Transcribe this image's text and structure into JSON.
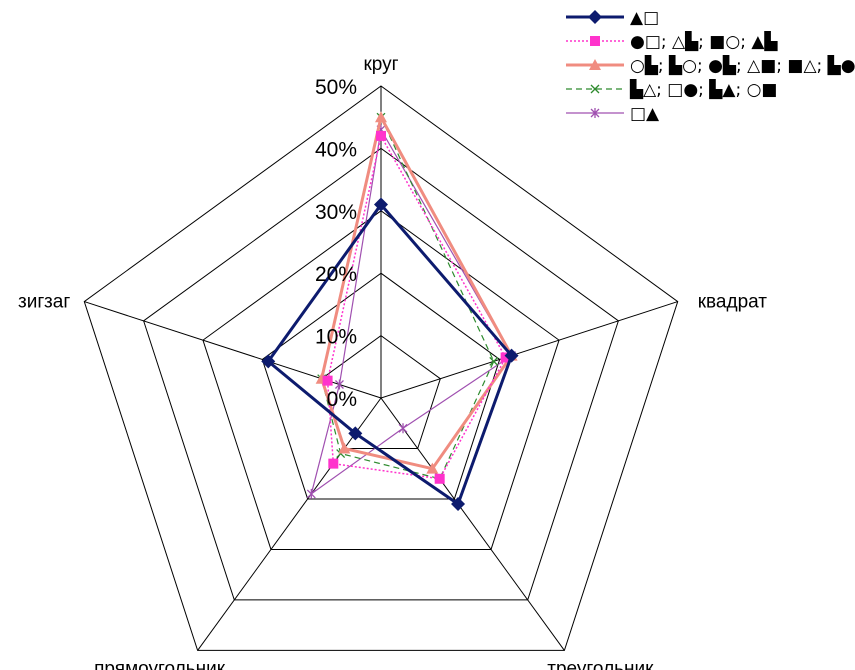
{
  "chart_data": {
    "type": "radar",
    "title": "",
    "axes": [
      "круг",
      "квадрат",
      "треугольник",
      "прямоугольник",
      "зигзаг"
    ],
    "range": [
      0,
      0.5
    ],
    "ticks": [
      0,
      0.1,
      0.2,
      0.3,
      0.4,
      0.5
    ],
    "tick_labels": [
      "0%",
      "10%",
      "20%",
      "30%",
      "40%",
      "50%"
    ],
    "grid": true,
    "legend_position": "top-right",
    "series": [
      {
        "name": "▲□",
        "color": "#0d1b6e",
        "marker": "diamond",
        "dash": "",
        "width": 3,
        "values": [
          0.31,
          0.22,
          0.21,
          0.07,
          0.19
        ]
      },
      {
        "name": "●□; △▙; ■○; ▲▙",
        "color": "#ff33cc",
        "marker": "square",
        "dash": "2,2",
        "width": 1.5,
        "values": [
          0.42,
          0.21,
          0.16,
          0.13,
          0.09
        ]
      },
      {
        "name": "○▙; ▙○; ●▙; △■; ■△; ▙●",
        "color": "#f08c80",
        "marker": "triangle",
        "dash": "",
        "width": 3,
        "values": [
          0.45,
          0.22,
          0.14,
          0.1,
          0.1
        ]
      },
      {
        "name": "▙△; □●; ▙▲; ○■",
        "color": "#2e8b2e",
        "marker": "x",
        "dash": "6,4",
        "width": 1.2,
        "values": [
          0.45,
          0.19,
          0.16,
          0.11,
          0.1
        ]
      },
      {
        "name": "□▲",
        "color": "#a050b0",
        "marker": "star",
        "dash": "",
        "width": 1.2,
        "values": [
          0.43,
          0.22,
          0.06,
          0.19,
          0.07
        ]
      }
    ]
  }
}
